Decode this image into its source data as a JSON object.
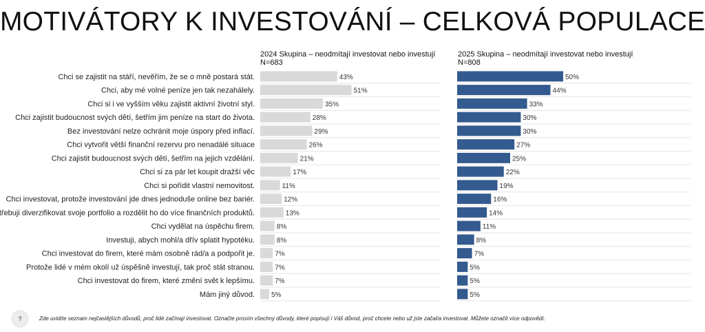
{
  "page": {
    "title": "MOTIVÁTORY K INVESTOVÁNÍ – CELKOVÁ POPULACE",
    "footnote": "Zde uvidíte seznam nejčastějších důvodů, proč lidé začínají investovat.   Označte prosím všechny důvody, které popisují i Váš důvod, proč chcete nebo už jste začal/a investovat.   Můžete označit více odpovědí.",
    "help_label": "?"
  },
  "chart_data": {
    "type": "bar",
    "orientation": "horizontal",
    "unit": "%",
    "xlim": [
      0,
      100
    ],
    "grid": false,
    "categories": [
      "Chci se zajistit na stáří, nevěřím, že se o mně postará stát.",
      "Chci, aby mé volné peníze jen tak nezahálely.",
      "Chci si i ve vyšším věku zajistit aktivní životní styl.",
      "Chci zajistit budoucnost svých dětí, šetřím jim peníze na start do života.",
      "Bez investování nelze ochránit moje úspory před inflací.",
      "Chci vytvořit větší finanční rezervu pro nenadálé situace",
      "Chci zajistit budoucnost svých dětí, šetřím na jejich vzdělání.",
      "Chci si za pár let koupit dražší věc",
      "Chci si pořídit vlastní nemovitost.",
      "Chci investovat, protože investování jde dnes jednoduše online bez bariér.",
      "Potřebuji diverzifikovat svoje portfolio a rozdělit ho do více finančních produktů.",
      "Chci vydělat na úspěchu firem.",
      "Investuji, abych mohl/a dřív splatit hypotéku.",
      "Chci investovat do firem, které mám osobně rád/a a podpořit je.",
      "Protože lidé v mém okolí už úspěšně investují, tak proč stát stranou.",
      "Chci investovat do firem, které změní svět k lepšímu.",
      "Mám jiný důvod."
    ],
    "series": [
      {
        "name": "2024 Skupina – neodmítají investovat nebo investují",
        "n_label": "N=683",
        "color": "#d9d9d9",
        "values": [
          43,
          51,
          35,
          28,
          29,
          26,
          21,
          17,
          11,
          12,
          13,
          8,
          8,
          7,
          7,
          7,
          5
        ]
      },
      {
        "name": "2025 Skupina – neodmítají investovat nebo investují",
        "n_label": "N=808",
        "color": "#345b8f",
        "values": [
          50,
          44,
          33,
          30,
          30,
          27,
          25,
          22,
          19,
          16,
          14,
          11,
          8,
          7,
          5,
          5,
          5
        ]
      }
    ]
  }
}
